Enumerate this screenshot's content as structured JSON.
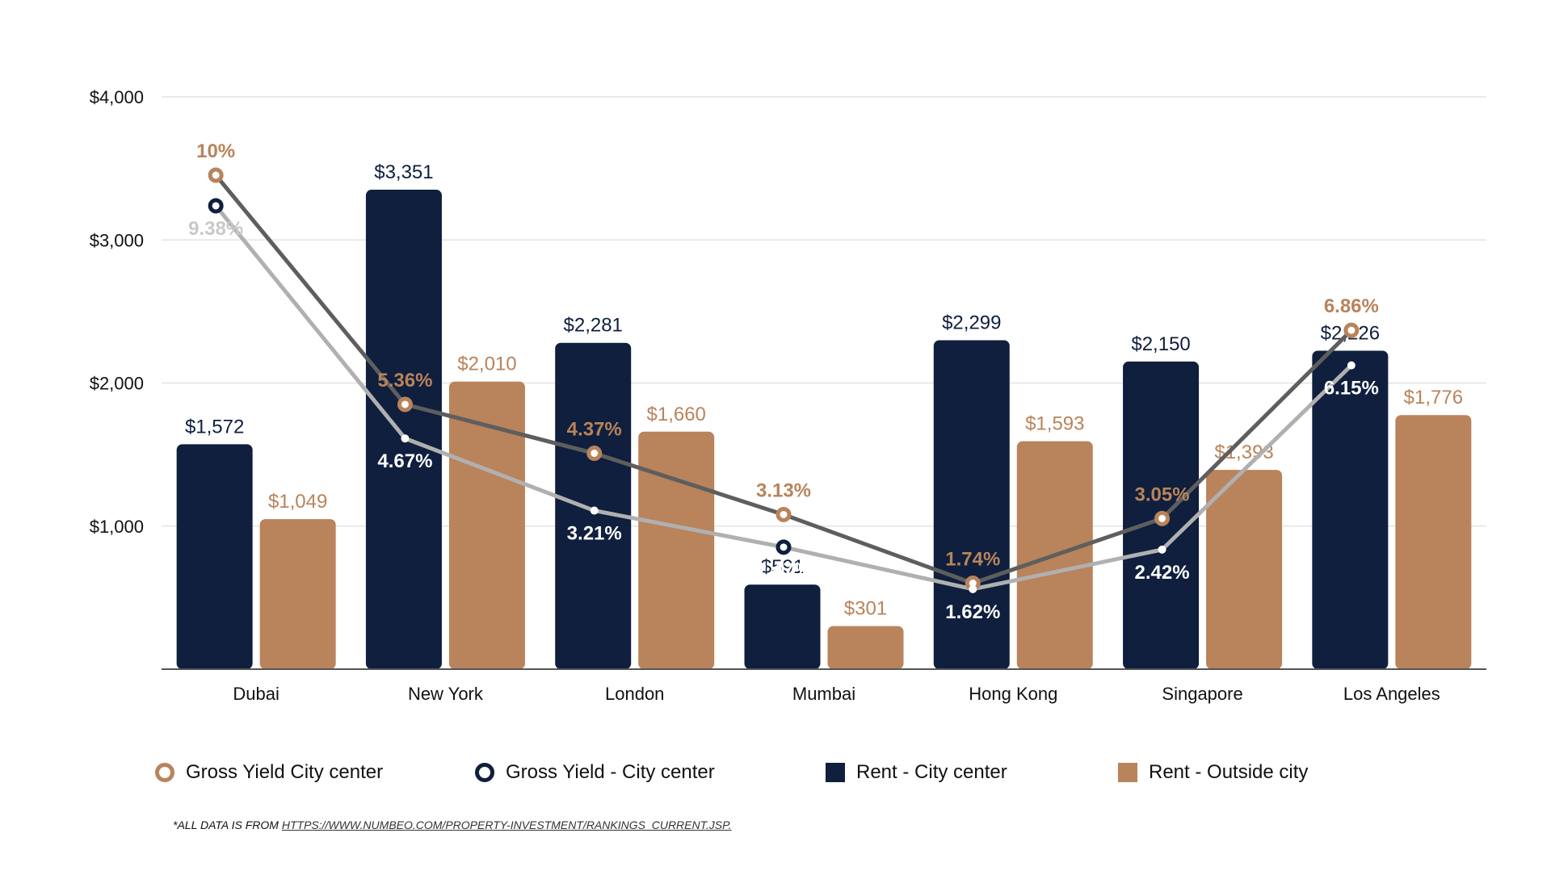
{
  "chart_data": {
    "type": "bar",
    "categories": [
      "Dubai",
      "New York",
      "London",
      "Mumbai",
      "Hong Kong",
      "Singapore",
      "Los Angeles"
    ],
    "series": [
      {
        "name": "Rent - City center",
        "kind": "bar",
        "color": "#0f1f3d",
        "values": [
          1572,
          3351,
          2281,
          591,
          2299,
          2150,
          2226
        ],
        "labels": [
          "$1,572",
          "$3,351",
          "$2,281",
          "$591",
          "$2,299",
          "$2,150",
          "$2,226"
        ]
      },
      {
        "name": "Rent - Outside city",
        "kind": "bar",
        "color": "#b9835b",
        "values": [
          1049,
          2010,
          1660,
          301,
          1593,
          1393,
          1776
        ],
        "labels": [
          "$1,049",
          "$2,010",
          "$1,660",
          "$301",
          "$1,593",
          "$1,393",
          "$1,776"
        ]
      },
      {
        "name": "Gross Yield City center",
        "kind": "line",
        "color": "#b9835b",
        "line_color": "#5e5e5e",
        "values": [
          10,
          5.36,
          4.37,
          3.13,
          1.74,
          3.05,
          6.86
        ],
        "labels": [
          "10%",
          "5.36%",
          "4.37%",
          "3.13%",
          "1.74%",
          "3.05%",
          "6.86%"
        ]
      },
      {
        "name": "Gross Yield - City center",
        "kind": "line",
        "color": "#0f1f3d",
        "line_color": "#b0b0b0",
        "values": [
          9.38,
          4.67,
          3.21,
          2.47,
          1.62,
          2.42,
          6.15
        ],
        "labels": [
          "9.38%",
          "4.67%",
          "3.21%",
          "2.47%",
          "1.62%",
          "2.42%",
          "6.15%"
        ]
      }
    ],
    "y_axis": {
      "ylim": [
        0,
        4000
      ],
      "ticks": [
        1000,
        2000,
        3000,
        4000
      ],
      "tick_labels": [
        "$1,000",
        "$2,000",
        "$3,000",
        "$4,000"
      ]
    },
    "grid": true,
    "legend_position": "bottom"
  },
  "legend": {
    "yield_outside_label": "Gross Yield City center",
    "yield_center_label": "Gross Yield - City center",
    "rent_center_label": "Rent - City center",
    "rent_outside_label": "Rent - Outside city"
  },
  "footnote": {
    "prefix": "*ALL DATA IS FROM ",
    "link_text": "HTTPS://WWW.NUMBEO.COM/PROPERTY-INVESTMENT/RANKINGS_CURRENT.JSP."
  }
}
